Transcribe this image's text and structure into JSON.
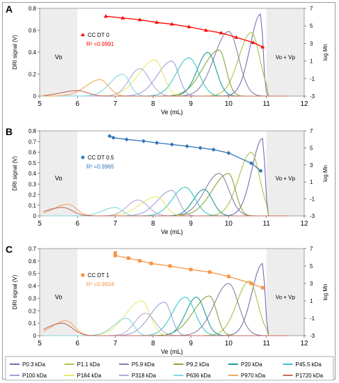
{
  "chart_data": [
    {
      "type": "line",
      "panel_letter": "A",
      "xlabel": "Ve (mL)",
      "ylabel": "DRI signal (V)",
      "y2label": "log Mn",
      "xlim": [
        5,
        12
      ],
      "ylim": [
        0,
        0.8
      ],
      "y2lim": [
        -3,
        7
      ],
      "x_ticks": [
        "5",
        "6",
        "7",
        "8",
        "9",
        "10",
        "11",
        "12"
      ],
      "y_ticks": [
        "0",
        "0.2",
        "0.4",
        "0.6",
        "0.8"
      ],
      "y2_ticks": [
        "-3",
        "-1",
        "1",
        "3",
        "5",
        "7"
      ],
      "region_labels": {
        "left": "Vo",
        "right": "Vo + Vp"
      },
      "calibration": {
        "name": "CC DT 0",
        "r2": "R² =0.9991",
        "color": "#ff0000",
        "marker": "triangle",
        "x": [
          6.75,
          7.2,
          7.65,
          8.1,
          8.5,
          8.95,
          9.4,
          9.8,
          10.2,
          10.65,
          10.9
        ],
        "y": [
          6.1,
          5.9,
          5.7,
          5.4,
          5.2,
          4.9,
          4.5,
          4.2,
          3.7,
          3.1,
          2.6
        ]
      },
      "peaks": [
        {
          "x": 10.85,
          "y": 0.75
        },
        {
          "x": 10.6,
          "y": 0.58
        },
        {
          "x": 10.0,
          "y": 0.59
        },
        {
          "x": 9.75,
          "y": 0.42
        },
        {
          "x": 9.45,
          "y": 0.4
        },
        {
          "x": 8.95,
          "y": 0.35
        },
        {
          "x": 8.5,
          "y": 0.32
        },
        {
          "x": 8.05,
          "y": 0.33
        },
        {
          "x": 7.65,
          "y": 0.25
        },
        {
          "x": 7.2,
          "y": 0.2
        },
        {
          "x": 6.6,
          "y": 0.15
        },
        {
          "x": 6.0,
          "y": 0.05
        }
      ]
    },
    {
      "type": "line",
      "panel_letter": "B",
      "xlabel": "Ve (mL)",
      "ylabel": "DRI signal (V)",
      "y2label": "log Mn",
      "xlim": [
        5,
        12
      ],
      "ylim": [
        0,
        0.8
      ],
      "y2lim": [
        -3,
        7
      ],
      "x_ticks": [
        "5",
        "6",
        "7",
        "8",
        "9",
        "10",
        "11",
        "12"
      ],
      "y_ticks": [
        "0",
        "0.1",
        "0.2",
        "0.3",
        "0.4",
        "0.5",
        "0.6",
        "0.7",
        "0.8"
      ],
      "y2_ticks": [
        "-3",
        "-1",
        "1",
        "3",
        "5",
        "7"
      ],
      "region_labels": {
        "left": "Vo",
        "right": "Vo + Vp"
      },
      "calibration": {
        "name": "CC DT 0.5",
        "r2": "R² =0.9965",
        "color": "#2e75b6",
        "marker": "diamond",
        "x": [
          6.85,
          6.95,
          7.3,
          7.75,
          8.1,
          8.5,
          8.9,
          9.25,
          9.6,
          10.0,
          10.6,
          10.85
        ],
        "y": [
          6.4,
          6.2,
          6.0,
          5.8,
          5.6,
          5.4,
          5.2,
          5.0,
          4.8,
          4.4,
          3.2,
          2.3
        ]
      },
      "peaks": [
        {
          "x": 10.9,
          "y": 0.73
        },
        {
          "x": 10.6,
          "y": 0.6
        },
        {
          "x": 9.75,
          "y": 0.4
        },
        {
          "x": 10.0,
          "y": 0.4
        },
        {
          "x": 9.35,
          "y": 0.25
        },
        {
          "x": 8.85,
          "y": 0.27
        },
        {
          "x": 8.5,
          "y": 0.24
        },
        {
          "x": 8.1,
          "y": 0.18
        },
        {
          "x": 7.6,
          "y": 0.15
        },
        {
          "x": 7.0,
          "y": 0.08
        },
        {
          "x": 5.75,
          "y": 0.11
        },
        {
          "x": 5.6,
          "y": 0.08
        }
      ]
    },
    {
      "type": "line",
      "panel_letter": "C",
      "xlabel": "Ve (mL)",
      "ylabel": "DRI signal (V)",
      "y2label": "log Mn",
      "xlim": [
        5,
        12
      ],
      "ylim": [
        0,
        0.7
      ],
      "y2lim": [
        -3,
        7
      ],
      "x_ticks": [
        "5",
        "6",
        "7",
        "8",
        "9",
        "10",
        "11",
        "12"
      ],
      "y_ticks": [
        "0",
        "0.1",
        "0.2",
        "0.3",
        "0.4",
        "0.5",
        "0.6",
        "0.7"
      ],
      "y2_ticks": [
        "-3",
        "-1",
        "1",
        "3",
        "5",
        "7"
      ],
      "region_labels": {
        "left": "Vo",
        "right": "Vo + Vp"
      },
      "calibration": {
        "name": "CC DT 1",
        "r2": "R² =0.9934",
        "color": "#f79646",
        "marker": "square",
        "x": [
          7.0,
          7.0,
          7.35,
          7.65,
          7.95,
          8.45,
          9.0,
          9.5,
          10.0,
          10.6,
          10.9
        ],
        "y": [
          6.5,
          6.2,
          5.9,
          5.6,
          5.3,
          5.0,
          4.6,
          4.3,
          3.8,
          3.0,
          2.5
        ]
      },
      "peaks": [
        {
          "x": 10.9,
          "y": 0.58
        },
        {
          "x": 10.55,
          "y": 0.44
        },
        {
          "x": 10.0,
          "y": 0.42
        },
        {
          "x": 9.5,
          "y": 0.32
        },
        {
          "x": 9.15,
          "y": 0.31
        },
        {
          "x": 8.85,
          "y": 0.31
        },
        {
          "x": 8.3,
          "y": 0.27
        },
        {
          "x": 7.7,
          "y": 0.28
        },
        {
          "x": 7.8,
          "y": 0.18
        },
        {
          "x": 7.3,
          "y": 0.14
        },
        {
          "x": 5.7,
          "y": 0.12
        },
        {
          "x": 5.6,
          "y": 0.1
        }
      ]
    }
  ],
  "legend": {
    "placement": "bottom",
    "series": [
      {
        "name": "P0.3 kDa",
        "color": "#6f6fb5"
      },
      {
        "name": "P1.1 kDa",
        "color": "#a9c244"
      },
      {
        "name": "P5.9 kDa",
        "color": "#8d7ba8"
      },
      {
        "name": "P9.2 kDa",
        "color": "#8aa33b"
      },
      {
        "name": "P20 kDa",
        "color": "#1b9a9a"
      },
      {
        "name": "P45.5 kDa",
        "color": "#39c6c6"
      },
      {
        "name": "P100 kDa",
        "color": "#9aa1d8"
      },
      {
        "name": "P184 kDa",
        "color": "#e8e86a"
      },
      {
        "name": "P318 kDa",
        "color": "#b7a8d6"
      },
      {
        "name": "P636 kDa",
        "color": "#7fd8e0"
      },
      {
        "name": "P970 kDa",
        "color": "#f0a860"
      },
      {
        "name": "P1720 kDa",
        "color": "#c46a5c"
      }
    ]
  }
}
